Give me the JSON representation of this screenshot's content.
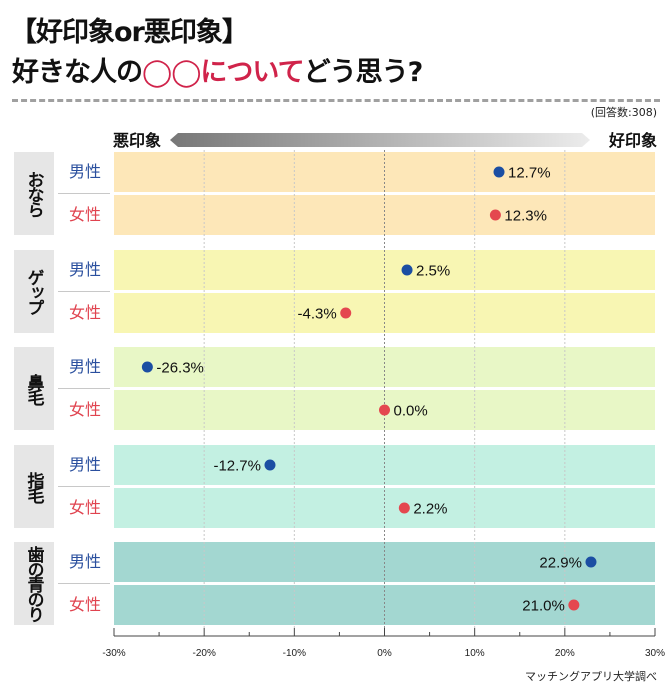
{
  "title": {
    "line1": "【好印象or悪印象】",
    "line2_before": "好きな人の",
    "line2_highlight": "◯◯について",
    "line2_after": "どう思う?"
  },
  "respondents": "(回答数:308)",
  "scale": {
    "bad": "悪印象",
    "good": "好印象"
  },
  "source": "マッチングアプリ大学調べ",
  "colors": {
    "male": "#1b4ea3",
    "female": "#e4474f",
    "male_text": "#2a4f9e",
    "female_text": "#e0434f",
    "highlight": "#d0234a"
  },
  "chart_data": {
    "type": "scatter",
    "title": "【好印象or悪印象】好きな人の◯◯についてどう思う?",
    "xlabel": "",
    "ylabel": "",
    "xlim": [
      -30,
      30
    ],
    "xticks": [
      -30,
      -20,
      -10,
      0,
      10,
      20,
      30
    ],
    "xtick_labels": [
      "-30%",
      "-20%",
      "-10%",
      "0%",
      "10%",
      "20%",
      "30%"
    ],
    "grid": true,
    "legend": [
      "男性",
      "女性"
    ],
    "groups": [
      {
        "name": "おなら",
        "color": "#fde7b8",
        "rows": [
          {
            "sex": "男性",
            "value": 12.7,
            "label": "12.7%",
            "side": "right"
          },
          {
            "sex": "女性",
            "value": 12.3,
            "label": "12.3%",
            "side": "right"
          }
        ]
      },
      {
        "name": "ゲップ",
        "color": "#f8f6b3",
        "rows": [
          {
            "sex": "男性",
            "value": 2.5,
            "label": "2.5%",
            "side": "right"
          },
          {
            "sex": "女性",
            "value": -4.3,
            "label": "-4.3%",
            "side": "left"
          }
        ]
      },
      {
        "name": "鼻毛",
        "color": "#e8f7c6",
        "rows": [
          {
            "sex": "男性",
            "value": -26.3,
            "label": "-26.3%",
            "side": "right"
          },
          {
            "sex": "女性",
            "value": 0.0,
            "label": "0.0%",
            "side": "right"
          }
        ]
      },
      {
        "name": "指毛",
        "color": "#c3f0e2",
        "rows": [
          {
            "sex": "男性",
            "value": -12.7,
            "label": "-12.7%",
            "side": "left"
          },
          {
            "sex": "女性",
            "value": 2.2,
            "label": "2.2%",
            "side": "right"
          }
        ]
      },
      {
        "name": "歯の青のり",
        "color": "#a3d7d1",
        "rows": [
          {
            "sex": "男性",
            "value": 22.9,
            "label": "22.9%",
            "side": "left"
          },
          {
            "sex": "女性",
            "value": 21.0,
            "label": "21.0%",
            "side": "left"
          }
        ]
      }
    ]
  }
}
